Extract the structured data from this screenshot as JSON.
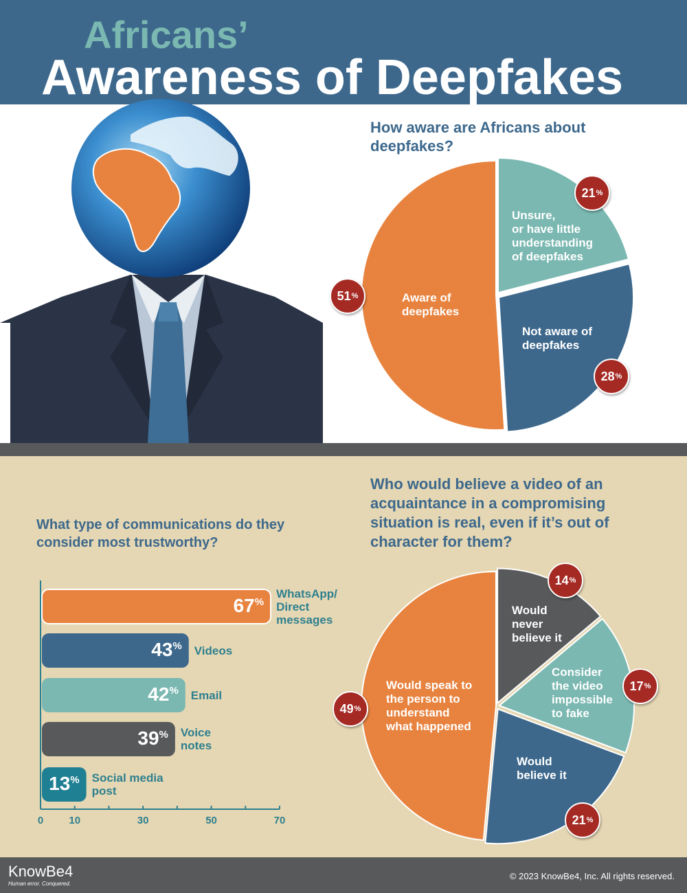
{
  "header": {
    "title_line1": "Africans’",
    "title_line2": "Awareness of Deepfakes"
  },
  "colors": {
    "header_bg": "#3d688c",
    "orange": "#e8833f",
    "teal": "#7ab8b1",
    "blue": "#3d688c",
    "gray": "#58595b",
    "dark_teal": "#1f7f93",
    "badge_red": "#a52a24",
    "beige": "#e5d7b3"
  },
  "chart_data": [
    {
      "type": "pie",
      "title": "How aware are Africans about deepfakes?",
      "slices": [
        {
          "label": "Unsure, or have little understanding of deepfakes",
          "label_lines": [
            "Unsure,",
            "or have little",
            "understanding",
            "of deepfakes"
          ],
          "value": 21,
          "display": "21",
          "color": "#7ab8b1"
        },
        {
          "label": "Not aware of deepfakes",
          "label_lines": [
            "Not aware of",
            "deepfakes"
          ],
          "value": 28,
          "display": "28",
          "color": "#3d688c"
        },
        {
          "label": "Aware of deepfakes",
          "label_lines": [
            "Aware of",
            "deepfakes"
          ],
          "value": 51,
          "display": "51",
          "color": "#e8833f"
        }
      ]
    },
    {
      "type": "bar",
      "title": "What type of communications do they consider most trustworthy?",
      "orientation": "horizontal",
      "categories": [
        "WhatsApp/ Direct messages",
        "Videos",
        "Email",
        "Voice notes",
        "Social media post"
      ],
      "category_lines": [
        [
          "WhatsApp/",
          "Direct",
          "messages"
        ],
        [
          "Videos"
        ],
        [
          "Email"
        ],
        [
          "Voice",
          "notes"
        ],
        [
          "Social media",
          "post"
        ]
      ],
      "values": [
        67,
        43,
        42,
        39,
        13
      ],
      "value_display": [
        "67",
        "43",
        "42",
        "39",
        "13"
      ],
      "colors": [
        "#e8833f",
        "#3d688c",
        "#7ab8b1",
        "#58595b",
        "#1f7f93"
      ],
      "xlim": [
        0,
        70
      ],
      "xticks": [
        0,
        10,
        30,
        50,
        70
      ],
      "xtick_labels": [
        "0",
        "10",
        "30",
        "50",
        "70"
      ]
    },
    {
      "type": "pie",
      "title": "Who would believe a video of an acquaintance in a compromising situation is real, even if it’s out of character for them?",
      "slices": [
        {
          "label": "Would never believe it",
          "label_lines": [
            "Would",
            "never",
            "believe it"
          ],
          "value": 14,
          "display": "14",
          "color": "#58595b"
        },
        {
          "label": "Consider the video impossible to fake",
          "label_lines": [
            "Consider",
            "the video",
            "impossible",
            "to fake"
          ],
          "value": 17,
          "display": "17",
          "color": "#7ab8b1"
        },
        {
          "label": "Would believe it",
          "label_lines": [
            "Would",
            "believe it"
          ],
          "value": 21,
          "display": "21",
          "color": "#3d688c"
        },
        {
          "label": "Would speak to the person to understand what happened",
          "label_lines": [
            "Would speak to",
            "the person to",
            "understand",
            "what happened"
          ],
          "value": 49,
          "display": "49",
          "color": "#e8833f"
        }
      ]
    }
  ],
  "footer": {
    "logo": "KnowBe4",
    "tagline": "Human error. Conquered.",
    "copyright": "© 2023 KnowBe4, Inc.  All rights reserved."
  }
}
